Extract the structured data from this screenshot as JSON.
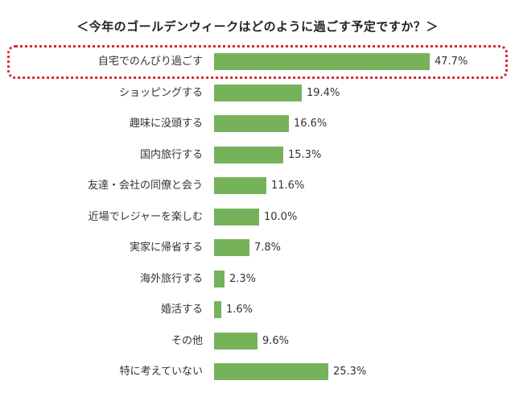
{
  "chart_data": {
    "type": "bar",
    "orientation": "horizontal",
    "title": "＜今年のゴールデンウィークはどのように過ごす予定ですか？＞",
    "bar_color": "#76b25a",
    "highlight_color": "#e0262f",
    "highlighted_category": "自宅でのんびり過ごす",
    "categories": [
      "自宅でのんびり過ごす",
      "ショッピングする",
      "趣味に没頭する",
      "国内旅行する",
      "友達・会社の同僚と会う",
      "近場でレジャーを楽しむ",
      "実家に帰省する",
      "海外旅行する",
      "婚活する",
      "その他",
      "特に考えていない"
    ],
    "values": [
      47.7,
      19.4,
      16.6,
      15.3,
      11.6,
      10.0,
      7.8,
      2.3,
      1.6,
      9.6,
      25.3
    ],
    "value_labels": [
      "47.7%",
      "19.4%",
      "16.6%",
      "15.3%",
      "11.6%",
      "10.0%",
      "7.8%",
      "2.3%",
      "1.6%",
      "9.6%",
      "25.3%"
    ],
    "unit": "%",
    "grid": false,
    "legend": "none"
  }
}
